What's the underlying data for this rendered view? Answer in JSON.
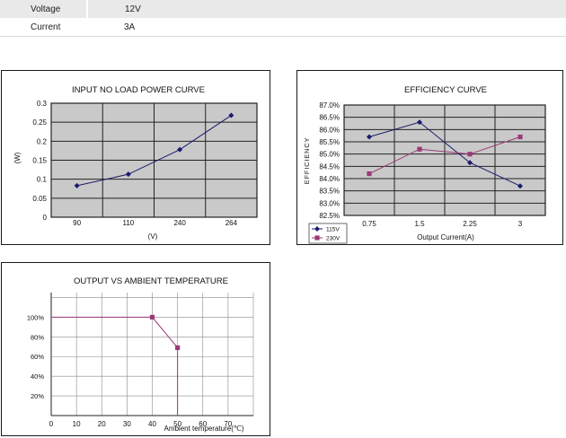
{
  "specs": [
    {
      "label": "Voltage",
      "value": "12V"
    },
    {
      "label": "Current",
      "value": "3A"
    }
  ],
  "chart_data": [
    {
      "type": "line",
      "title": "INPUT NO LOAD POWER CURVE",
      "xlabel": "(V)",
      "ylabel": "(W)",
      "categories": [
        "90",
        "110",
        "240",
        "264"
      ],
      "series": [
        {
          "values": [
            0.083,
            0.113,
            0.178,
            0.268
          ],
          "color": "#1a1a6e",
          "marker": "diamond"
        }
      ],
      "ylim": [
        0,
        0.3
      ],
      "yticks": [
        "0",
        "0.05",
        "0.1",
        "0.15",
        "0.2",
        "0.25",
        "0.3"
      ],
      "grid": true
    },
    {
      "type": "line",
      "title": "EFFICIENCY  CURVE",
      "xlabel": "Output Current(A)",
      "ylabel": "EFFICIENCY",
      "categories": [
        "0.75",
        "1.5",
        "2.25",
        "3"
      ],
      "series": [
        {
          "name": "115V",
          "values": [
            85.7,
            86.3,
            84.65,
            83.7
          ],
          "color": "#1a1a6e",
          "marker": "diamond"
        },
        {
          "name": "230V",
          "values": [
            84.2,
            85.2,
            85.0,
            85.7
          ],
          "color": "#9b3a78",
          "marker": "square"
        }
      ],
      "ylim": [
        82.5,
        87.0
      ],
      "yticks": [
        "82.5%",
        "83.0%",
        "83.5%",
        "84.0%",
        "84.5%",
        "85.0%",
        "85.5%",
        "86.0%",
        "86.5%",
        "87.0%"
      ],
      "legend": "bottom-left",
      "grid": true
    },
    {
      "type": "line",
      "title": "OUTPUT VS AMBIENT TEMPERATURE",
      "xlabel": "Ambient temperature(℃)",
      "x": [
        0,
        40,
        50
      ],
      "series": [
        {
          "values": [
            100,
            100,
            69
          ],
          "color": "#9b3a78",
          "marker": "square"
        }
      ],
      "xlim": [
        0,
        80
      ],
      "ylim": [
        0,
        125
      ],
      "xticks": [
        "0",
        "10",
        "20",
        "30",
        "40",
        "50",
        "60",
        "70"
      ],
      "yticks": [
        "20%",
        "40%",
        "60%",
        "80%",
        "100%"
      ],
      "grid": true
    }
  ]
}
